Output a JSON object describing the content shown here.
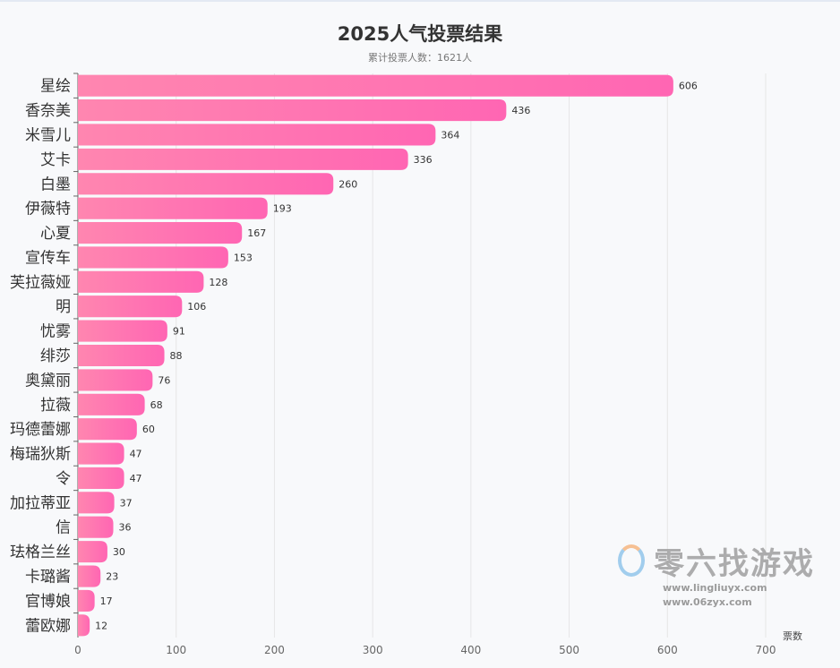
{
  "chart_data": {
    "type": "bar",
    "orientation": "horizontal",
    "title": "2025人气投票结果",
    "subtitle": "累计投票人数：1621人",
    "xlabel": "票数",
    "ylabel": "",
    "xlim": [
      0,
      700
    ],
    "xticks": [
      0,
      100,
      200,
      300,
      400,
      500,
      600,
      700
    ],
    "grid": true,
    "colors": {
      "bar_start": "#ff86b0",
      "bar_end": "#ff66b3",
      "text": "#333333",
      "grid": "#e6e6e6"
    },
    "categories": [
      "星绘",
      "香奈美",
      "米雪儿",
      "艾卡",
      "白墨",
      "伊薇特",
      "心夏",
      "宣传车",
      "芙拉薇娅",
      "明",
      "忧雾",
      "绯莎",
      "奥黛丽",
      "拉薇",
      "玛德蕾娜",
      "梅瑞狄斯",
      "令",
      "加拉蒂亚",
      "信",
      "珐格兰丝",
      "卡璐酱",
      "官博娘",
      "蕾欧娜"
    ],
    "values": [
      606,
      436,
      364,
      336,
      260,
      193,
      167,
      153,
      128,
      106,
      91,
      88,
      76,
      68,
      60,
      47,
      47,
      37,
      36,
      30,
      23,
      17,
      12
    ]
  },
  "watermark": {
    "brand": "零六找游戏",
    "url1": "www.lingliuyx.com",
    "url2": "www.06zyx.com"
  }
}
